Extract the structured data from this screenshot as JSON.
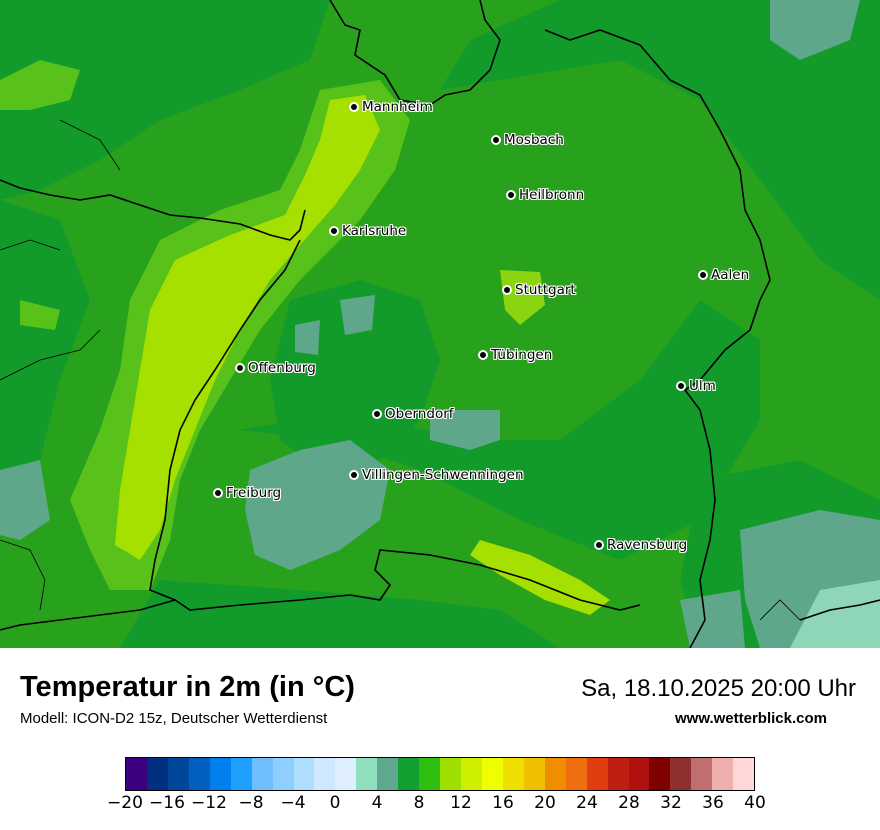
{
  "title": "Temperatur in 2m (in °C)",
  "subtitle": "Modell: ICON-D2 15z, Deutscher Wetterdienst",
  "datetime": "Sa, 18.10.2025 20:00 Uhr",
  "website": "www.wetterblick.com",
  "cities": [
    {
      "name": "Mannheim"
    },
    {
      "name": "Mosbach"
    },
    {
      "name": "Heilbronn"
    },
    {
      "name": "Karlsruhe"
    },
    {
      "name": "Stuttgart"
    },
    {
      "name": "Aalen"
    },
    {
      "name": "Tübingen"
    },
    {
      "name": "Offenburg"
    },
    {
      "name": "Ulm"
    },
    {
      "name": "Oberndorf"
    },
    {
      "name": "Villingen-Schwenningen"
    },
    {
      "name": "Freiburg"
    },
    {
      "name": "Ravensburg"
    }
  ],
  "legend": {
    "colors": [
      "#3a007f",
      "#00307f",
      "#00479a",
      "#005fbf",
      "#0080ef",
      "#1fa0ff",
      "#6fbfff",
      "#8fcfff",
      "#afdfff",
      "#cfe8ff",
      "#dfefff",
      "#8fdfbf",
      "#5fa78f",
      "#109f30",
      "#2fbf10",
      "#9fdf00",
      "#cfef00",
      "#efff00",
      "#efdf00",
      "#efbf00",
      "#ef8f00",
      "#ef6f10",
      "#df3f10",
      "#bf1f10",
      "#af1010",
      "#7f0000",
      "#8f3030",
      "#bf6f6f",
      "#efafaf",
      "#ffd8d8"
    ],
    "ticks": [
      "−20",
      "−16",
      "−12",
      "−8",
      "−4",
      "0",
      "4",
      "8",
      "12",
      "16",
      "20",
      "24",
      "28",
      "32",
      "36",
      "40"
    ]
  }
}
